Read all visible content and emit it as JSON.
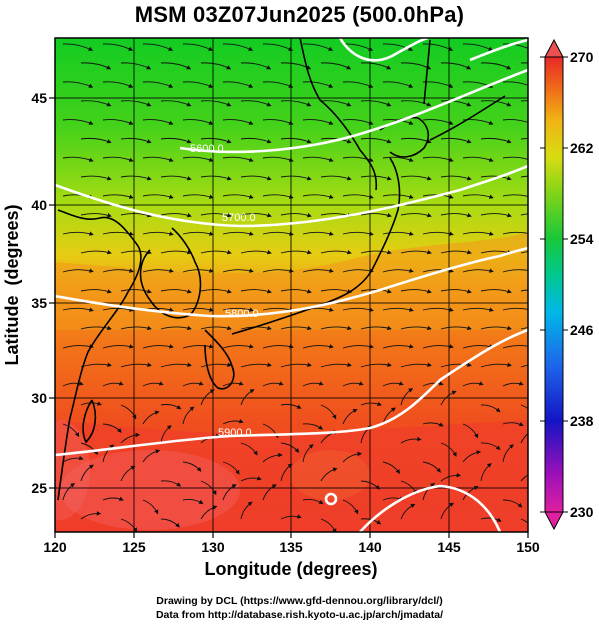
{
  "title": "MSM 03Z07Jun2025 (500.0hPa)",
  "axes": {
    "xlabel": "Longitude (degrees)",
    "ylabel": "Latitude  (degrees)",
    "xlim": [
      120,
      150
    ],
    "ylim": [
      22.5,
      48
    ],
    "xticks": [
      "120",
      "125",
      "130",
      "135",
      "140",
      "145",
      "150"
    ],
    "yticks": [
      "25",
      "30",
      "35",
      "40",
      "45"
    ]
  },
  "colorbar": {
    "ticks": [
      "270",
      "262",
      "254",
      "246",
      "238",
      "230"
    ],
    "range": [
      230,
      270
    ],
    "colors": [
      "#e0209e",
      "#8a00b0",
      "#1010c8",
      "#1c58e6",
      "#00b4e6",
      "#00c8a0",
      "#20c83c",
      "#7cd21a",
      "#c8dc14",
      "#f0c814",
      "#f08c14",
      "#f05a1a",
      "#e62828"
    ]
  },
  "contours": [
    {
      "label": "5600.0"
    },
    {
      "label": "5700.0"
    },
    {
      "label": "5800.0"
    },
    {
      "label": "5900.0"
    }
  ],
  "credits": {
    "line1": "Drawing by DCL (https://www.gfd-dennou.org/library/dcl/)",
    "line2": "Data from http://database.rish.kyoto-u.ac.jp/arch/jmadata/"
  },
  "colors": {
    "north": "#18d020",
    "mid": "#c8e010",
    "orange": "#f27a18",
    "south": "#f03c28",
    "contour": "#ffffff"
  }
}
